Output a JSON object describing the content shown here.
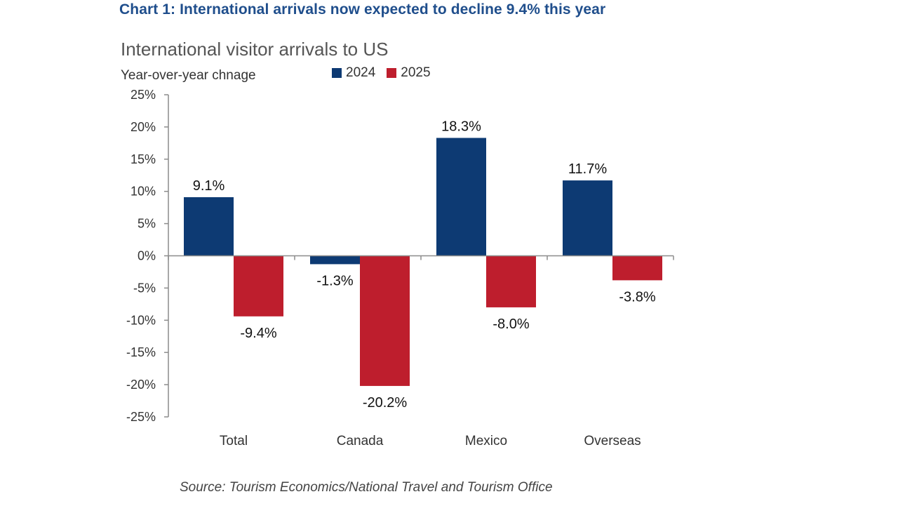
{
  "heading": "Chart 1: International arrivals now expected to decline 9.4% this year",
  "chart_data": {
    "type": "bar",
    "title": "International visitor arrivals to US",
    "ylabel": "Year-over-year chnage",
    "xlabel": "",
    "categories": [
      "Total",
      "Canada",
      "Mexico",
      "Overseas"
    ],
    "series": [
      {
        "name": "2024",
        "color": "#0d3a73",
        "values": [
          9.1,
          -1.3,
          18.3,
          11.7
        ],
        "labels": [
          "9.1%",
          "-1.3%",
          "18.3%",
          "11.7%"
        ]
      },
      {
        "name": "2025",
        "color": "#be1e2d",
        "values": [
          -9.4,
          -20.2,
          -8.0,
          -3.8
        ],
        "labels": [
          "-9.4%",
          "-20.2%",
          "-8.0%",
          "-3.8%"
        ]
      }
    ],
    "ylim": [
      -25,
      25
    ],
    "yticks": [
      25,
      20,
      15,
      10,
      5,
      0,
      -5,
      -10,
      -15,
      -20,
      -25
    ],
    "ytick_labels": [
      "25%",
      "20%",
      "15%",
      "10%",
      "5%",
      "0%",
      "-5%",
      "-10%",
      "-15%",
      "-20%",
      "-25%"
    ],
    "grid": false,
    "legend_position": "top"
  },
  "source": "Source: Tourism  Economics/National Travel and Tourism Office"
}
